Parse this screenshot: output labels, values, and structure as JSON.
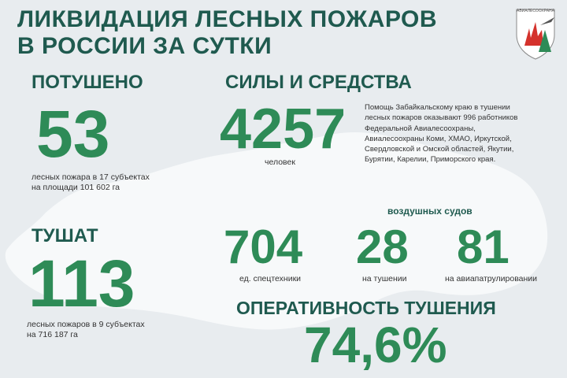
{
  "title": {
    "line1": "ЛИКВИДАЦИЯ ЛЕСНЫХ ПОЖАРОВ",
    "line2": "В РОССИИ ЗА СУТКИ"
  },
  "logo": {
    "text": "АВИАЛЕСООХРАНА",
    "icon": "avialesookhrana-shield-logo"
  },
  "extinguished": {
    "heading": "ПОТУШЕНО",
    "value": "53",
    "caption_line1": "лесных пожара в 17 субъектах",
    "caption_line2": "на площади  101 602 га"
  },
  "forces": {
    "heading": "СИЛЫ И СРЕДСТВА",
    "value": "4257",
    "caption": "человек",
    "note": "Помощь Забайкальскому краю в тушении лесных пожаров оказывают 996 работников Федеральной Авиалесоохраны, Авиалесоохраны Коми, ХМАО, Иркутской, Свердловской и Омской областей, Якутии, Бурятии, Карелии, Приморского края."
  },
  "burning": {
    "heading": "ТУШАТ",
    "value": "113",
    "caption_line1": "лесных пожаров в 9 субъектах",
    "caption_line2": "на 716 187 га"
  },
  "equipment": {
    "value": "704",
    "caption": "ед. спецтехники"
  },
  "aircraft": {
    "heading": "воздушных судов",
    "firefighting_value": "28",
    "firefighting_caption": "на тушении",
    "patrol_value": "81",
    "patrol_caption": "на авиапатрулировании"
  },
  "efficiency": {
    "heading": "ОПЕРАТИВНОСТЬ ТУШЕНИЯ",
    "value": "74,6%"
  },
  "colors": {
    "background": "#e8ecef",
    "map": "#f7f9fa",
    "heading": "#1f5a4f",
    "number": "#2e8b57",
    "logo_red": "#d4322c",
    "logo_green": "#2e8b57"
  }
}
